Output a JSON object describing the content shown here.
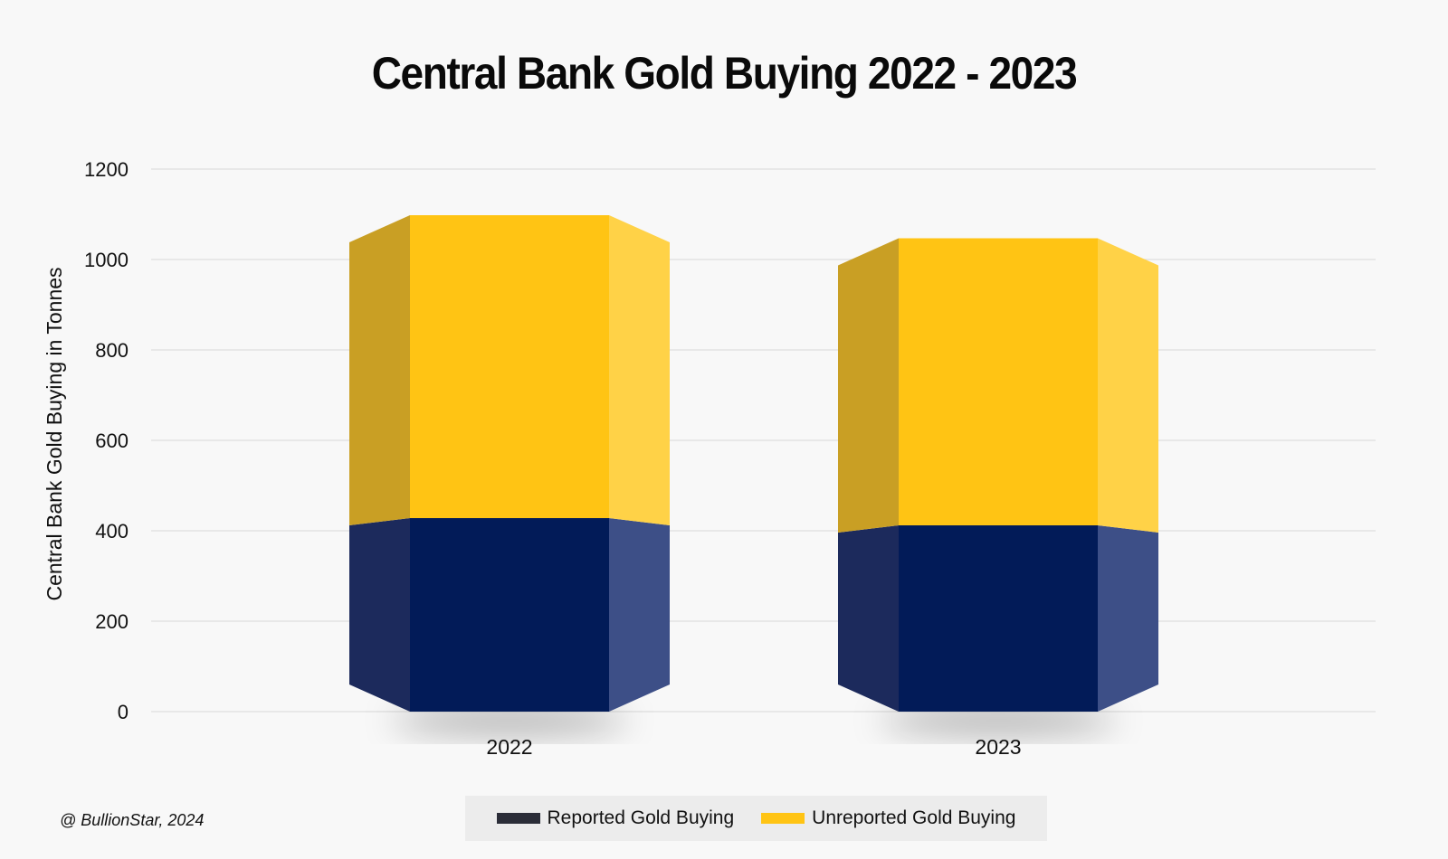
{
  "chart_data": {
    "type": "bar",
    "stacked": true,
    "title": "Central Bank Gold Buying 2022 - 2023",
    "ylabel": "Central Bank Gold Buying in Tonnes",
    "xlabel": "",
    "categories": [
      "2022",
      "2023"
    ],
    "series": [
      {
        "name": "Reported Gold Buying",
        "values": [
          428,
          412
        ],
        "color": "#021b58"
      },
      {
        "name": "Unreported Gold Buying",
        "values": [
          670,
          635
        ],
        "color": "#ffc414"
      }
    ],
    "ylim": [
      0,
      1200
    ],
    "yticks": [
      0,
      200,
      400,
      600,
      800,
      1000,
      1200
    ],
    "grid": true,
    "legend_position": "bottom"
  },
  "credit": "@ BullionStar, 2024",
  "colors": {
    "reported_legend": "#2b2d38",
    "unreported_legend": "#ffc414",
    "gridline": "#dddddd"
  }
}
